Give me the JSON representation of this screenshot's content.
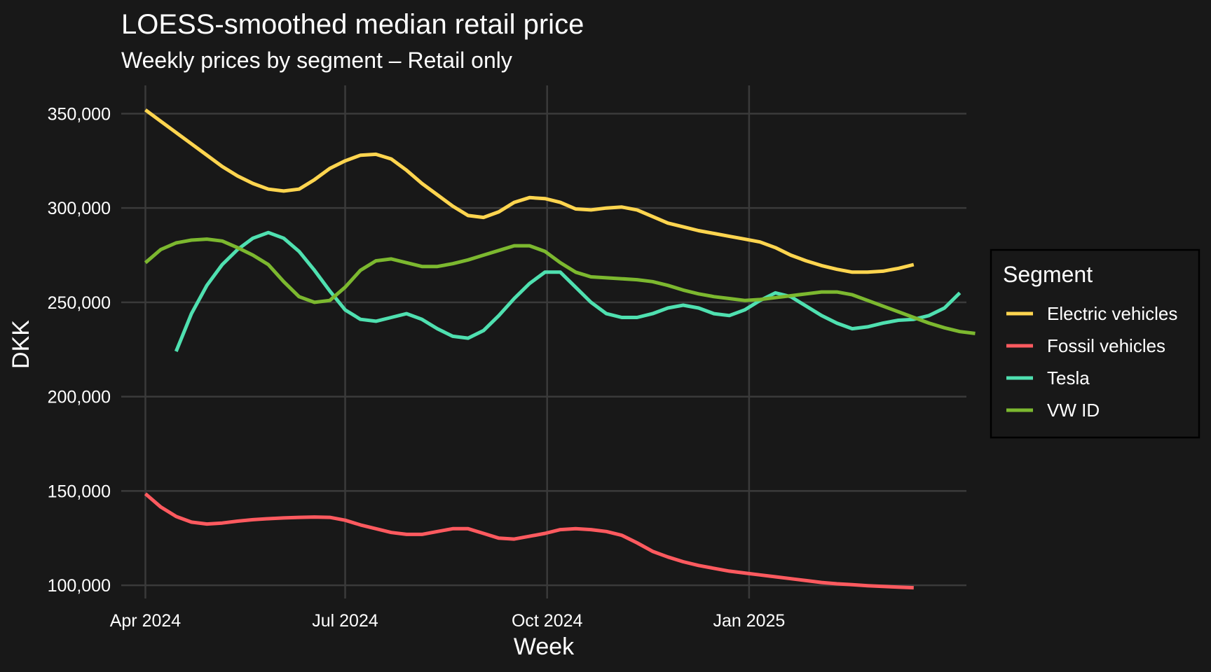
{
  "chart_data": {
    "type": "line",
    "title": "LOESS-smoothed median retail price",
    "subtitle": "Weekly prices by segment – Retail only",
    "xlabel": "Week",
    "ylabel": "DKK",
    "x_tick_labels": [
      "Apr 2024",
      "Jul 2024",
      "Oct 2024",
      "Jan 2025"
    ],
    "x_ticks": [
      "2024-04-01",
      "2024-07-01",
      "2024-10-01",
      "2025-01-01"
    ],
    "xlim": [
      "2024-03-21",
      "2025-04-10"
    ],
    "y_ticks": [
      100000,
      150000,
      200000,
      250000,
      300000,
      350000
    ],
    "y_tick_labels": [
      "100,000",
      "150,000",
      "200,000",
      "250,000",
      "300,000",
      "350,000"
    ],
    "ylim": [
      93000,
      365000
    ],
    "grid": true,
    "legend": {
      "title": "Segment",
      "placement": "right"
    },
    "series": [
      {
        "name": "Electric vehicles",
        "color": "#FFD54F",
        "points": [
          [
            "2024-04-01",
            352000
          ],
          [
            "2024-04-08",
            346000
          ],
          [
            "2024-04-15",
            340000
          ],
          [
            "2024-04-22",
            334000
          ],
          [
            "2024-04-29",
            328000
          ],
          [
            "2024-05-06",
            322000
          ],
          [
            "2024-05-13",
            317000
          ],
          [
            "2024-05-20",
            313000
          ],
          [
            "2024-05-27",
            310000
          ],
          [
            "2024-06-03",
            309000
          ],
          [
            "2024-06-10",
            310000
          ],
          [
            "2024-06-17",
            315000
          ],
          [
            "2024-06-24",
            321000
          ],
          [
            "2024-07-01",
            325000
          ],
          [
            "2024-07-08",
            328000
          ],
          [
            "2024-07-15",
            328500
          ],
          [
            "2024-07-22",
            326000
          ],
          [
            "2024-07-29",
            320000
          ],
          [
            "2024-08-05",
            313000
          ],
          [
            "2024-08-12",
            307000
          ],
          [
            "2024-08-19",
            301000
          ],
          [
            "2024-08-26",
            296000
          ],
          [
            "2024-09-02",
            295000
          ],
          [
            "2024-09-09",
            298000
          ],
          [
            "2024-09-16",
            303000
          ],
          [
            "2024-09-23",
            305500
          ],
          [
            "2024-09-30",
            305000
          ],
          [
            "2024-10-07",
            303000
          ],
          [
            "2024-10-14",
            299500
          ],
          [
            "2024-10-21",
            299000
          ],
          [
            "2024-10-28",
            300000
          ],
          [
            "2024-11-04",
            300500
          ],
          [
            "2024-11-11",
            299000
          ],
          [
            "2024-11-18",
            295500
          ],
          [
            "2024-11-25",
            292000
          ],
          [
            "2024-12-02",
            290000
          ],
          [
            "2024-12-09",
            288000
          ],
          [
            "2024-12-16",
            286500
          ],
          [
            "2024-12-23",
            285000
          ],
          [
            "2024-12-30",
            283500
          ],
          [
            "2025-01-06",
            282000
          ],
          [
            "2025-01-13",
            279000
          ],
          [
            "2025-01-20",
            275000
          ],
          [
            "2025-01-27",
            272000
          ],
          [
            "2025-02-03",
            269500
          ],
          [
            "2025-02-10",
            267500
          ],
          [
            "2025-02-17",
            266000
          ],
          [
            "2025-02-24",
            266000
          ],
          [
            "2025-03-03",
            266500
          ],
          [
            "2025-03-10",
            268000
          ],
          [
            "2025-03-17",
            270000
          ]
        ]
      },
      {
        "name": "Fossil vehicles",
        "color": "#FF5A5F",
        "points": [
          [
            "2024-04-01",
            148500
          ],
          [
            "2024-04-08",
            141500
          ],
          [
            "2024-04-15",
            136500
          ],
          [
            "2024-04-22",
            133500
          ],
          [
            "2024-04-29",
            132500
          ],
          [
            "2024-05-06",
            133000
          ],
          [
            "2024-05-13",
            134000
          ],
          [
            "2024-05-20",
            134800
          ],
          [
            "2024-05-27",
            135300
          ],
          [
            "2024-06-03",
            135700
          ],
          [
            "2024-06-10",
            136000
          ],
          [
            "2024-06-17",
            136200
          ],
          [
            "2024-06-24",
            136000
          ],
          [
            "2024-07-01",
            134500
          ],
          [
            "2024-07-08",
            132000
          ],
          [
            "2024-07-15",
            130000
          ],
          [
            "2024-07-22",
            128000
          ],
          [
            "2024-07-29",
            127000
          ],
          [
            "2024-08-05",
            127000
          ],
          [
            "2024-08-12",
            128500
          ],
          [
            "2024-08-19",
            130000
          ],
          [
            "2024-08-26",
            130000
          ],
          [
            "2024-09-02",
            127500
          ],
          [
            "2024-09-09",
            125000
          ],
          [
            "2024-09-16",
            124500
          ],
          [
            "2024-09-23",
            126000
          ],
          [
            "2024-09-30",
            127500
          ],
          [
            "2024-10-07",
            129500
          ],
          [
            "2024-10-14",
            130000
          ],
          [
            "2024-10-21",
            129500
          ],
          [
            "2024-10-28",
            128500
          ],
          [
            "2024-11-04",
            126500
          ],
          [
            "2024-11-11",
            122500
          ],
          [
            "2024-11-18",
            118000
          ],
          [
            "2024-11-25",
            115000
          ],
          [
            "2024-12-02",
            112500
          ],
          [
            "2024-12-09",
            110500
          ],
          [
            "2024-12-16",
            109000
          ],
          [
            "2024-12-23",
            107500
          ],
          [
            "2024-12-30",
            106500
          ],
          [
            "2025-01-06",
            105500
          ],
          [
            "2025-01-13",
            104500
          ],
          [
            "2025-01-20",
            103500
          ],
          [
            "2025-01-27",
            102500
          ],
          [
            "2025-02-03",
            101500
          ],
          [
            "2025-02-10",
            100800
          ],
          [
            "2025-02-17",
            100300
          ],
          [
            "2025-02-24",
            99800
          ],
          [
            "2025-03-03",
            99400
          ],
          [
            "2025-03-10",
            99000
          ],
          [
            "2025-03-17",
            98700
          ]
        ]
      },
      {
        "name": "Tesla",
        "color": "#4FE0B0",
        "points": [
          [
            "2024-04-15",
            224000
          ],
          [
            "2024-04-22",
            244000
          ],
          [
            "2024-04-29",
            259000
          ],
          [
            "2024-05-06",
            270000
          ],
          [
            "2024-05-13",
            278000
          ],
          [
            "2024-05-20",
            284000
          ],
          [
            "2024-05-27",
            287000
          ],
          [
            "2024-06-03",
            284000
          ],
          [
            "2024-06-10",
            277000
          ],
          [
            "2024-06-17",
            267000
          ],
          [
            "2024-06-24",
            256000
          ],
          [
            "2024-07-01",
            246000
          ],
          [
            "2024-07-08",
            241000
          ],
          [
            "2024-07-15",
            240000
          ],
          [
            "2024-07-22",
            242000
          ],
          [
            "2024-07-29",
            244000
          ],
          [
            "2024-08-05",
            241000
          ],
          [
            "2024-08-12",
            236000
          ],
          [
            "2024-08-19",
            232000
          ],
          [
            "2024-08-26",
            231000
          ],
          [
            "2024-09-02",
            235000
          ],
          [
            "2024-09-09",
            243000
          ],
          [
            "2024-09-16",
            252000
          ],
          [
            "2024-09-23",
            260000
          ],
          [
            "2024-09-30",
            266000
          ],
          [
            "2024-10-07",
            266000
          ],
          [
            "2024-10-14",
            258000
          ],
          [
            "2024-10-21",
            250000
          ],
          [
            "2024-10-28",
            244000
          ],
          [
            "2024-11-04",
            242000
          ],
          [
            "2024-11-11",
            242000
          ],
          [
            "2024-11-18",
            244000
          ],
          [
            "2024-11-25",
            247000
          ],
          [
            "2024-12-02",
            248500
          ],
          [
            "2024-12-09",
            247000
          ],
          [
            "2024-12-16",
            244000
          ],
          [
            "2024-12-23",
            243000
          ],
          [
            "2024-12-30",
            246000
          ],
          [
            "2025-01-06",
            251000
          ],
          [
            "2025-01-13",
            255000
          ],
          [
            "2025-01-20",
            253000
          ],
          [
            "2025-01-27",
            248000
          ],
          [
            "2025-02-03",
            243000
          ],
          [
            "2025-02-10",
            239000
          ],
          [
            "2025-02-17",
            236000
          ],
          [
            "2025-02-24",
            237000
          ],
          [
            "2025-03-03",
            239000
          ],
          [
            "2025-03-10",
            240500
          ],
          [
            "2025-03-17",
            241000
          ],
          [
            "2025-03-24",
            243000
          ],
          [
            "2025-03-31",
            247000
          ],
          [
            "2025-04-07",
            255000
          ]
        ]
      },
      {
        "name": "VW ID",
        "color": "#7CB82F",
        "points": [
          [
            "2024-04-01",
            271000
          ],
          [
            "2024-04-08",
            278000
          ],
          [
            "2024-04-15",
            281500
          ],
          [
            "2024-04-22",
            283000
          ],
          [
            "2024-04-29",
            283500
          ],
          [
            "2024-05-06",
            282500
          ],
          [
            "2024-05-13",
            279000
          ],
          [
            "2024-05-20",
            275000
          ],
          [
            "2024-05-27",
            270000
          ],
          [
            "2024-06-03",
            261000
          ],
          [
            "2024-06-10",
            253000
          ],
          [
            "2024-06-17",
            250000
          ],
          [
            "2024-06-24",
            251000
          ],
          [
            "2024-07-01",
            258000
          ],
          [
            "2024-07-08",
            267000
          ],
          [
            "2024-07-15",
            272000
          ],
          [
            "2024-07-22",
            273000
          ],
          [
            "2024-07-29",
            271000
          ],
          [
            "2024-08-05",
            269000
          ],
          [
            "2024-08-12",
            269000
          ],
          [
            "2024-08-19",
            270500
          ],
          [
            "2024-08-26",
            272500
          ],
          [
            "2024-09-02",
            275000
          ],
          [
            "2024-09-09",
            277500
          ],
          [
            "2024-09-16",
            280000
          ],
          [
            "2024-09-23",
            280000
          ],
          [
            "2024-09-30",
            277000
          ],
          [
            "2024-10-07",
            271000
          ],
          [
            "2024-10-14",
            266000
          ],
          [
            "2024-10-21",
            263500
          ],
          [
            "2024-10-28",
            263000
          ],
          [
            "2024-11-04",
            262500
          ],
          [
            "2024-11-11",
            262000
          ],
          [
            "2024-11-18",
            261000
          ],
          [
            "2024-11-25",
            259000
          ],
          [
            "2024-12-02",
            256500
          ],
          [
            "2024-12-09",
            254500
          ],
          [
            "2024-12-16",
            253000
          ],
          [
            "2024-12-23",
            252000
          ],
          [
            "2024-12-30",
            251000
          ],
          [
            "2025-01-06",
            251500
          ],
          [
            "2025-01-13",
            252500
          ],
          [
            "2025-01-20",
            253500
          ],
          [
            "2025-01-27",
            254500
          ],
          [
            "2025-02-03",
            255500
          ],
          [
            "2025-02-10",
            255500
          ],
          [
            "2025-02-17",
            254000
          ],
          [
            "2025-02-24",
            251000
          ],
          [
            "2025-03-03",
            248000
          ],
          [
            "2025-03-10",
            245000
          ],
          [
            "2025-03-17",
            242000
          ],
          [
            "2025-03-24",
            239000
          ],
          [
            "2025-03-31",
            236500
          ],
          [
            "2025-04-07",
            234500
          ],
          [
            "2025-04-14",
            233500
          ]
        ]
      }
    ]
  }
}
